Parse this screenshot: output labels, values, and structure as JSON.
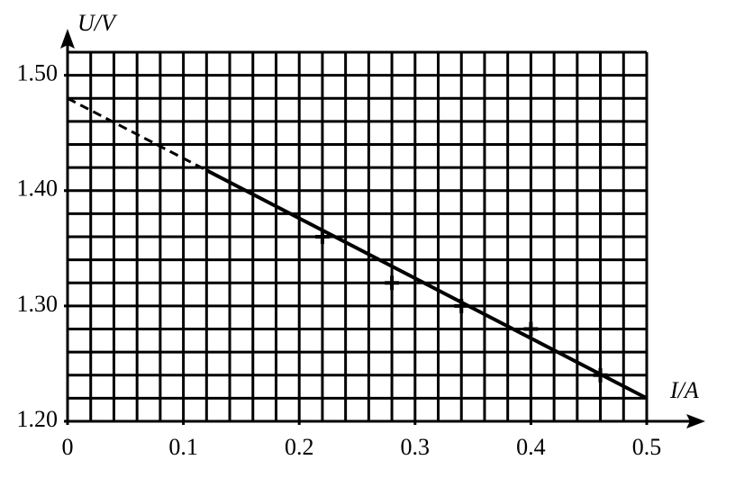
{
  "chart_data": {
    "type": "scatter",
    "x_label": "I/A",
    "y_label": "U/V",
    "x": [
      0.22,
      0.28,
      0.34,
      0.4,
      0.46
    ],
    "values": [
      1.36,
      1.32,
      1.3,
      1.28,
      1.24
    ],
    "color": "#000000",
    "xlim": [
      0,
      0.5
    ],
    "ylim": [
      1.2,
      1.52
    ],
    "xticks": [
      0,
      0.1,
      0.2,
      0.3,
      0.4,
      0.5
    ],
    "yticks": [
      {
        "value": 1.2,
        "label": "1.20"
      },
      {
        "value": 1.3,
        "label": "1.30"
      },
      {
        "value": 1.4,
        "label": "1.40"
      },
      {
        "value": 1.5,
        "label": "1.50"
      }
    ],
    "grid": true,
    "minor_grid_step": {
      "x": 0.02,
      "y": 0.02
    },
    "fit_line": {
      "x": [
        0,
        0.5
      ],
      "y": [
        1.48,
        1.22
      ],
      "dashed_until": 0.12
    }
  }
}
